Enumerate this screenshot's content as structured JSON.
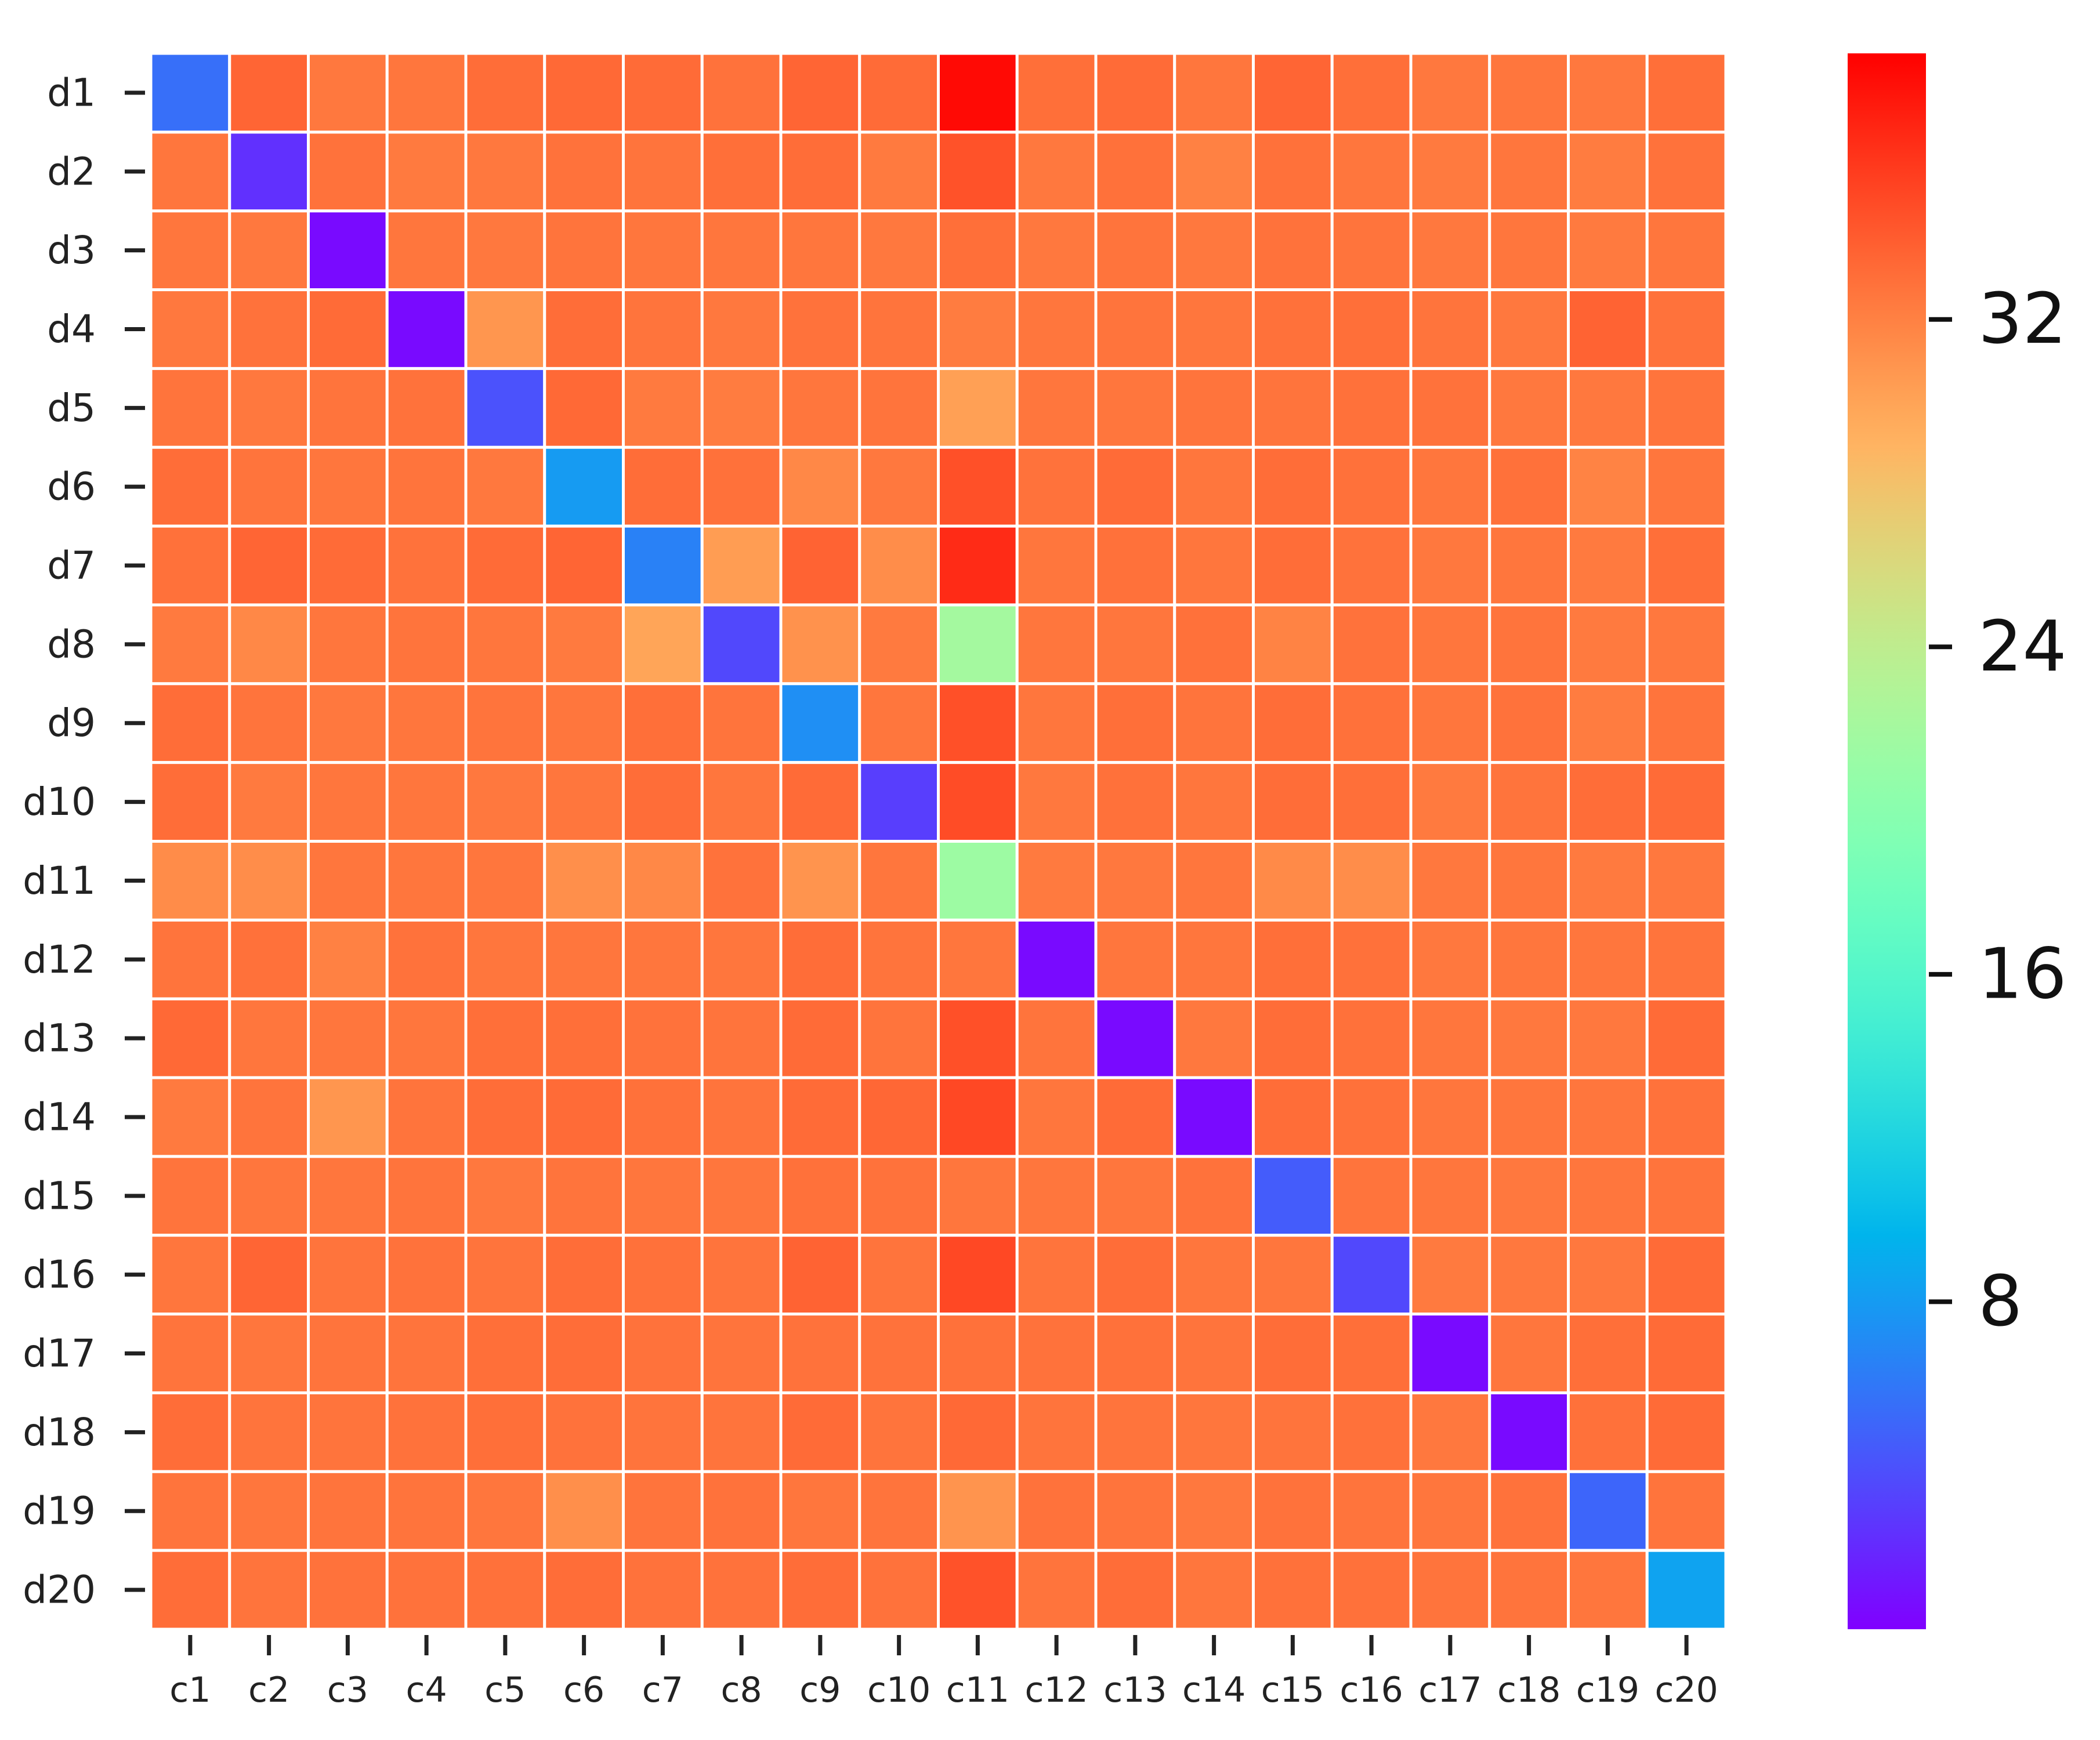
{
  "chart_data": {
    "type": "heatmap",
    "rows": [
      "d1",
      "d2",
      "d3",
      "d4",
      "d5",
      "d6",
      "d7",
      "d8",
      "d9",
      "d10",
      "d11",
      "d12",
      "d13",
      "d14",
      "d15",
      "d16",
      "d17",
      "d18",
      "d19",
      "d20"
    ],
    "columns": [
      "c1",
      "c2",
      "c3",
      "c4",
      "c5",
      "c6",
      "c7",
      "c8",
      "c9",
      "c10",
      "c11",
      "c12",
      "c13",
      "c14",
      "c15",
      "c16",
      "c17",
      "c18",
      "c19",
      "c20"
    ],
    "values": [
      [
        5.5,
        33.5,
        32.5,
        32.6,
        33.1,
        33.3,
        33.2,
        32.8,
        33.5,
        33.2,
        38.0,
        33.0,
        33.2,
        32.6,
        33.5,
        33.0,
        32.5,
        32.6,
        32.5,
        33.0
      ],
      [
        32.6,
        2.3,
        32.8,
        32.4,
        32.5,
        32.8,
        32.7,
        33.0,
        33.1,
        32.4,
        34.5,
        32.5,
        32.9,
        32.0,
        32.9,
        32.6,
        32.4,
        32.6,
        32.3,
        32.8
      ],
      [
        32.6,
        32.5,
        0.5,
        32.6,
        32.5,
        32.7,
        32.6,
        32.6,
        32.6,
        32.5,
        33.0,
        32.5,
        32.7,
        32.5,
        32.8,
        32.7,
        32.5,
        32.6,
        32.4,
        32.6
      ],
      [
        32.5,
        32.8,
        33.2,
        0.5,
        30.8,
        33.1,
        32.7,
        32.5,
        32.8,
        32.7,
        32.3,
        32.6,
        32.7,
        32.6,
        32.9,
        33.0,
        32.7,
        32.5,
        33.6,
        32.8
      ],
      [
        32.7,
        32.5,
        32.7,
        32.8,
        4.0,
        33.3,
        32.4,
        32.3,
        32.6,
        32.7,
        30.2,
        32.6,
        32.6,
        32.7,
        32.7,
        32.9,
        32.8,
        32.5,
        32.5,
        32.7
      ],
      [
        33.1,
        32.7,
        32.6,
        32.7,
        32.5,
        8.0,
        33.1,
        32.9,
        31.6,
        32.5,
        34.6,
        32.8,
        33.2,
        32.6,
        33.1,
        32.9,
        32.6,
        32.9,
        31.9,
        32.6
      ],
      [
        32.9,
        33.5,
        33.2,
        32.8,
        33.2,
        33.5,
        6.5,
        30.4,
        33.6,
        31.3,
        36.4,
        32.6,
        32.9,
        32.6,
        33.1,
        32.8,
        32.5,
        32.6,
        32.4,
        33.0
      ],
      [
        32.4,
        31.6,
        32.6,
        32.7,
        32.6,
        32.4,
        29.9,
        3.5,
        31.0,
        32.4,
        22.0,
        32.6,
        32.6,
        32.9,
        31.9,
        32.8,
        32.6,
        32.7,
        32.4,
        32.5
      ],
      [
        33.1,
        32.7,
        32.5,
        32.6,
        32.7,
        32.6,
        33.0,
        32.7,
        7.3,
        32.6,
        34.6,
        32.6,
        33.0,
        32.7,
        33.1,
        32.9,
        32.6,
        32.8,
        32.3,
        32.7
      ],
      [
        33.1,
        32.4,
        32.6,
        32.6,
        32.5,
        32.6,
        33.1,
        32.6,
        33.2,
        3.0,
        34.8,
        32.5,
        32.9,
        32.6,
        33.1,
        33.0,
        32.4,
        32.7,
        33.1,
        33.2
      ],
      [
        31.4,
        31.3,
        32.6,
        32.6,
        32.6,
        31.2,
        31.6,
        32.8,
        30.9,
        32.6,
        21.5,
        32.4,
        32.5,
        32.6,
        31.5,
        31.3,
        32.5,
        32.6,
        32.4,
        32.5
      ],
      [
        32.7,
        32.9,
        32.0,
        32.8,
        32.6,
        32.6,
        32.6,
        32.6,
        33.1,
        32.7,
        32.6,
        0.5,
        32.6,
        32.6,
        33.0,
        32.9,
        32.5,
        32.6,
        32.6,
        32.7
      ],
      [
        33.3,
        32.6,
        32.6,
        32.6,
        33.0,
        33.0,
        32.8,
        32.7,
        33.2,
        32.7,
        34.6,
        32.7,
        0.5,
        32.5,
        33.1,
        32.9,
        32.6,
        32.5,
        32.5,
        33.2
      ],
      [
        32.4,
        32.7,
        30.8,
        32.7,
        33.1,
        33.2,
        32.9,
        32.7,
        33.2,
        33.4,
        35.0,
        32.6,
        33.2,
        0.5,
        33.1,
        32.9,
        32.6,
        32.6,
        32.6,
        32.8
      ],
      [
        32.7,
        32.6,
        32.6,
        32.7,
        32.5,
        32.7,
        32.6,
        32.6,
        32.9,
        32.8,
        32.6,
        32.6,
        32.6,
        32.8,
        4.5,
        32.7,
        32.6,
        32.5,
        32.6,
        32.7
      ],
      [
        32.6,
        33.5,
        32.7,
        32.8,
        32.7,
        33.1,
        32.9,
        32.7,
        33.6,
        32.7,
        35.0,
        32.7,
        33.1,
        32.6,
        32.6,
        3.5,
        32.4,
        32.5,
        32.5,
        33.2
      ],
      [
        32.7,
        32.6,
        32.7,
        32.7,
        33.0,
        33.1,
        32.8,
        32.7,
        32.8,
        32.8,
        32.9,
        32.8,
        32.9,
        32.7,
        33.1,
        33.0,
        0.5,
        32.6,
        33.0,
        33.2
      ],
      [
        33.1,
        32.7,
        32.7,
        32.8,
        33.0,
        32.8,
        32.7,
        32.7,
        33.2,
        32.7,
        33.3,
        32.7,
        32.7,
        32.6,
        32.7,
        32.9,
        32.5,
        0.5,
        32.9,
        33.2
      ],
      [
        32.7,
        32.6,
        32.7,
        32.7,
        32.6,
        31.2,
        32.7,
        32.8,
        32.6,
        32.7,
        30.9,
        32.8,
        32.7,
        32.5,
        32.8,
        32.7,
        32.6,
        32.8,
        5.0,
        32.7
      ],
      [
        33.1,
        32.7,
        32.8,
        32.8,
        32.9,
        33.1,
        32.8,
        32.8,
        33.1,
        32.8,
        34.5,
        32.7,
        33.1,
        32.6,
        32.9,
        32.9,
        32.7,
        32.7,
        32.6,
        8.5
      ]
    ],
    "colormap": "rainbow",
    "vmin": 0,
    "vmax": 38.5,
    "colorbar": {
      "ticks": [
        8,
        16,
        24,
        32
      ],
      "tick_labels": [
        "8",
        "16",
        "24",
        "32"
      ]
    },
    "grid": true,
    "grid_color": "#ffffff",
    "title": "",
    "xlabel": "",
    "ylabel": ""
  }
}
